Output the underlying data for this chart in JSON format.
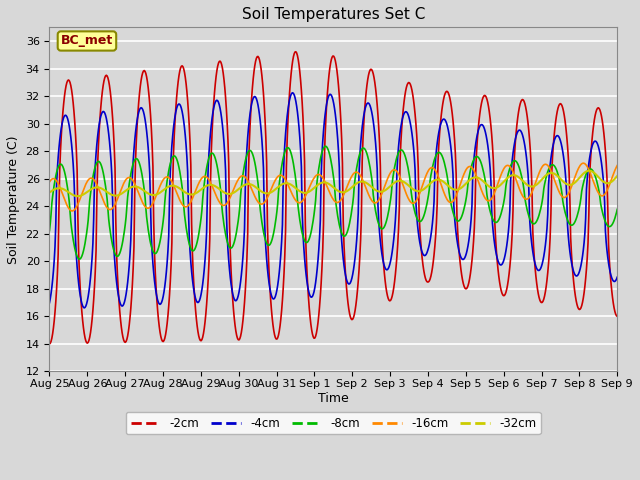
{
  "title": "Soil Temperatures Set C",
  "xlabel": "Time",
  "ylabel": "Soil Temperature (C)",
  "ylim": [
    12,
    37
  ],
  "yticks": [
    12,
    14,
    16,
    18,
    20,
    22,
    24,
    26,
    28,
    30,
    32,
    34,
    36
  ],
  "background_color": "#d8d8d8",
  "plot_bg_color": "#d8d8d8",
  "annotation_text": "BC_met",
  "annotation_bg": "#ffff99",
  "annotation_border": "#888800",
  "x_labels": [
    "Aug 25",
    "Aug 26",
    "Aug 27",
    "Aug 28",
    "Aug 29",
    "Aug 30",
    "Aug 31",
    "Sep 1",
    "Sep 2",
    "Sep 3",
    "Sep 4",
    "Sep 5",
    "Sep 6",
    "Sep 7",
    "Sep 8",
    "Sep 9"
  ],
  "series_colors": {
    "-2cm": "#cc0000",
    "-4cm": "#0000cc",
    "-8cm": "#00bb00",
    "-16cm": "#ff8800",
    "-32cm": "#cccc00"
  }
}
